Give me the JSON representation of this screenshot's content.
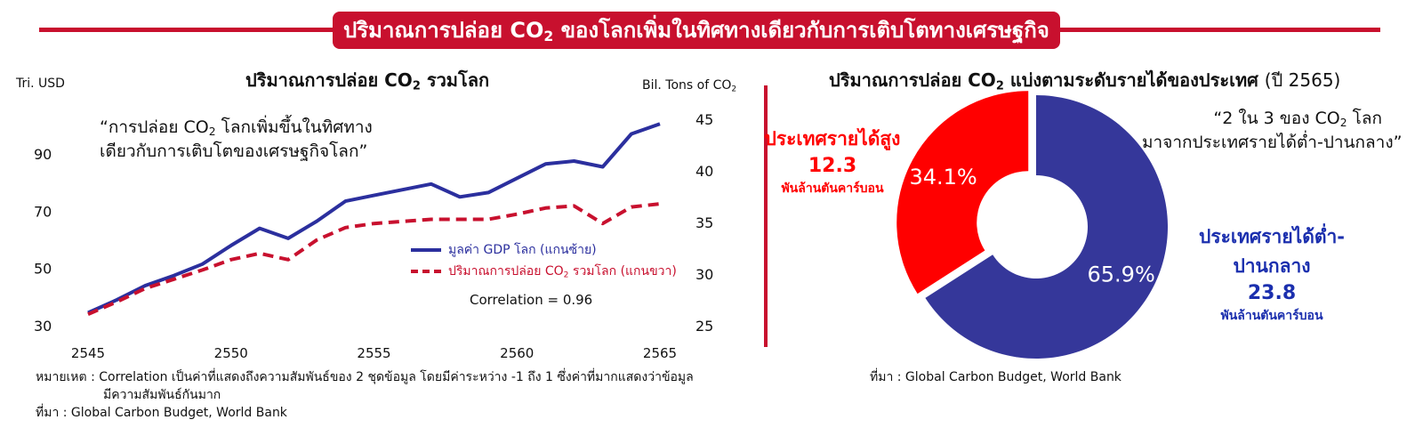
{
  "banner": {
    "title_before": "ปริมาณการปล่อย CO",
    "title_sub": "2",
    "title_after": " ของโลกเพิ่มในทิศทางเดียวกับการเติบโตทางเศรษฐกิจ"
  },
  "left_panel": {
    "title_before": "ปริมาณการปล่อย CO",
    "title_sub": "2",
    "title_after": " รวมโลก",
    "left_unit": "Tri. USD",
    "right_unit_before": "Bil. Tons of CO",
    "right_unit_sub": "2",
    "quote_line1_before": "“การปล่อย CO",
    "quote_line1_sub": "2",
    "quote_line1_after": " โลกเพิ่มขึ้นในทิศทาง",
    "quote_line2": "เดียวกับการเติบโตของเศรษฐกิจโลก”",
    "legend_gdp_main": "มูลค่า GDP โลก ",
    "legend_gdp_axis": "(แกนซ้าย)",
    "legend_co2_before": "ปริมาณการปล่อย CO",
    "legend_co2_sub": "2",
    "legend_co2_after": " รวมโลก ",
    "legend_co2_axis": "(แกนขวา)",
    "correlation": "Correlation = 0.96",
    "note_line1": "หมายเหต : Correlation เป็นค่าที่แสดงถึงความสัมพันธ์ของ 2 ชุดข้อมูล โดยมีค่าระหว่าง -1 ถึง 1 ซึ่งค่าที่มากแสดงว่าข้อมูล",
    "note_line2": "มีความสัมพันธ์กันมาก",
    "source": "ที่มา : Global Carbon Budget, World Bank"
  },
  "right_panel": {
    "title_before": "ปริมาณการปล่อย CO",
    "title_sub": "2",
    "title_after": " แบ่งตามระดับรายได้ของประเทศ ",
    "title_year": "(ปี 2565)",
    "quote_line1_before": "“2 ใน 3 ของ CO",
    "quote_line1_sub": "2",
    "quote_line1_after": " โลก",
    "quote_line2": "มาจากประเทศรายได้ต่ำ-ปานกลาง”",
    "high": {
      "label": "ประเทศรายได้สูง",
      "value": "12.3",
      "unit": "พันล้านตันคาร์บอน"
    },
    "low": {
      "label_line1": "ประเทศรายได้ต่ำ-",
      "label_line2": "ปานกลาง",
      "value": "23.8",
      "unit": "พันล้านตันคาร์บอน"
    },
    "source": "ที่มา : Global Carbon Budget, World Bank"
  },
  "colors": {
    "accent": "#c8102e",
    "gdp": "#2b2f9e",
    "co2": "#c8102e",
    "high": "#ff0000",
    "low": "#35379a"
  },
  "chart_data": [
    {
      "type": "line",
      "x": [
        2545,
        2546,
        2547,
        2548,
        2549,
        2550,
        2551,
        2552,
        2553,
        2554,
        2555,
        2556,
        2557,
        2558,
        2559,
        2560,
        2561,
        2562,
        2563,
        2564,
        2565
      ],
      "xticks": [
        2545,
        2550,
        2555,
        2560,
        2565
      ],
      "series": [
        {
          "name": "มูลค่า GDP โลก (แกนซ้าย)",
          "axis": "left",
          "style": "solid",
          "values": [
            34.5,
            39,
            44,
            47.5,
            51.5,
            58,
            64,
            60.5,
            66.5,
            73.5,
            75.5,
            77.5,
            79.5,
            75,
            76.5,
            81.5,
            86.5,
            87.5,
            85.5,
            97,
            100.5
          ]
        },
        {
          "name": "ปริมาณการปล่อย CO2 รวมโลก (แกนขวา)",
          "axis": "right",
          "style": "dashed",
          "values": [
            26.1,
            27.3,
            28.6,
            29.5,
            30.4,
            31.4,
            32.0,
            31.4,
            33.3,
            34.5,
            34.9,
            35.1,
            35.3,
            35.3,
            35.3,
            35.8,
            36.4,
            36.6,
            34.9,
            36.5,
            36.8
          ]
        }
      ],
      "ylim_left": [
        30,
        95
      ],
      "yticks_left": [
        30,
        50,
        70,
        90
      ],
      "ylim_right": [
        25,
        45
      ],
      "yticks_right": [
        25,
        30,
        35,
        40,
        45
      ],
      "ylabel_left": "Tri. USD",
      "ylabel_right": "Bil. Tons of CO2",
      "grid": false
    },
    {
      "type": "pie",
      "donut": true,
      "labels": [
        "ประเทศรายได้สูง",
        "ประเทศรายได้ต่ำ-ปานกลาง"
      ],
      "values": [
        12.3,
        23.8
      ],
      "percent_labels": [
        "34.1%",
        "65.9%"
      ]
    }
  ]
}
